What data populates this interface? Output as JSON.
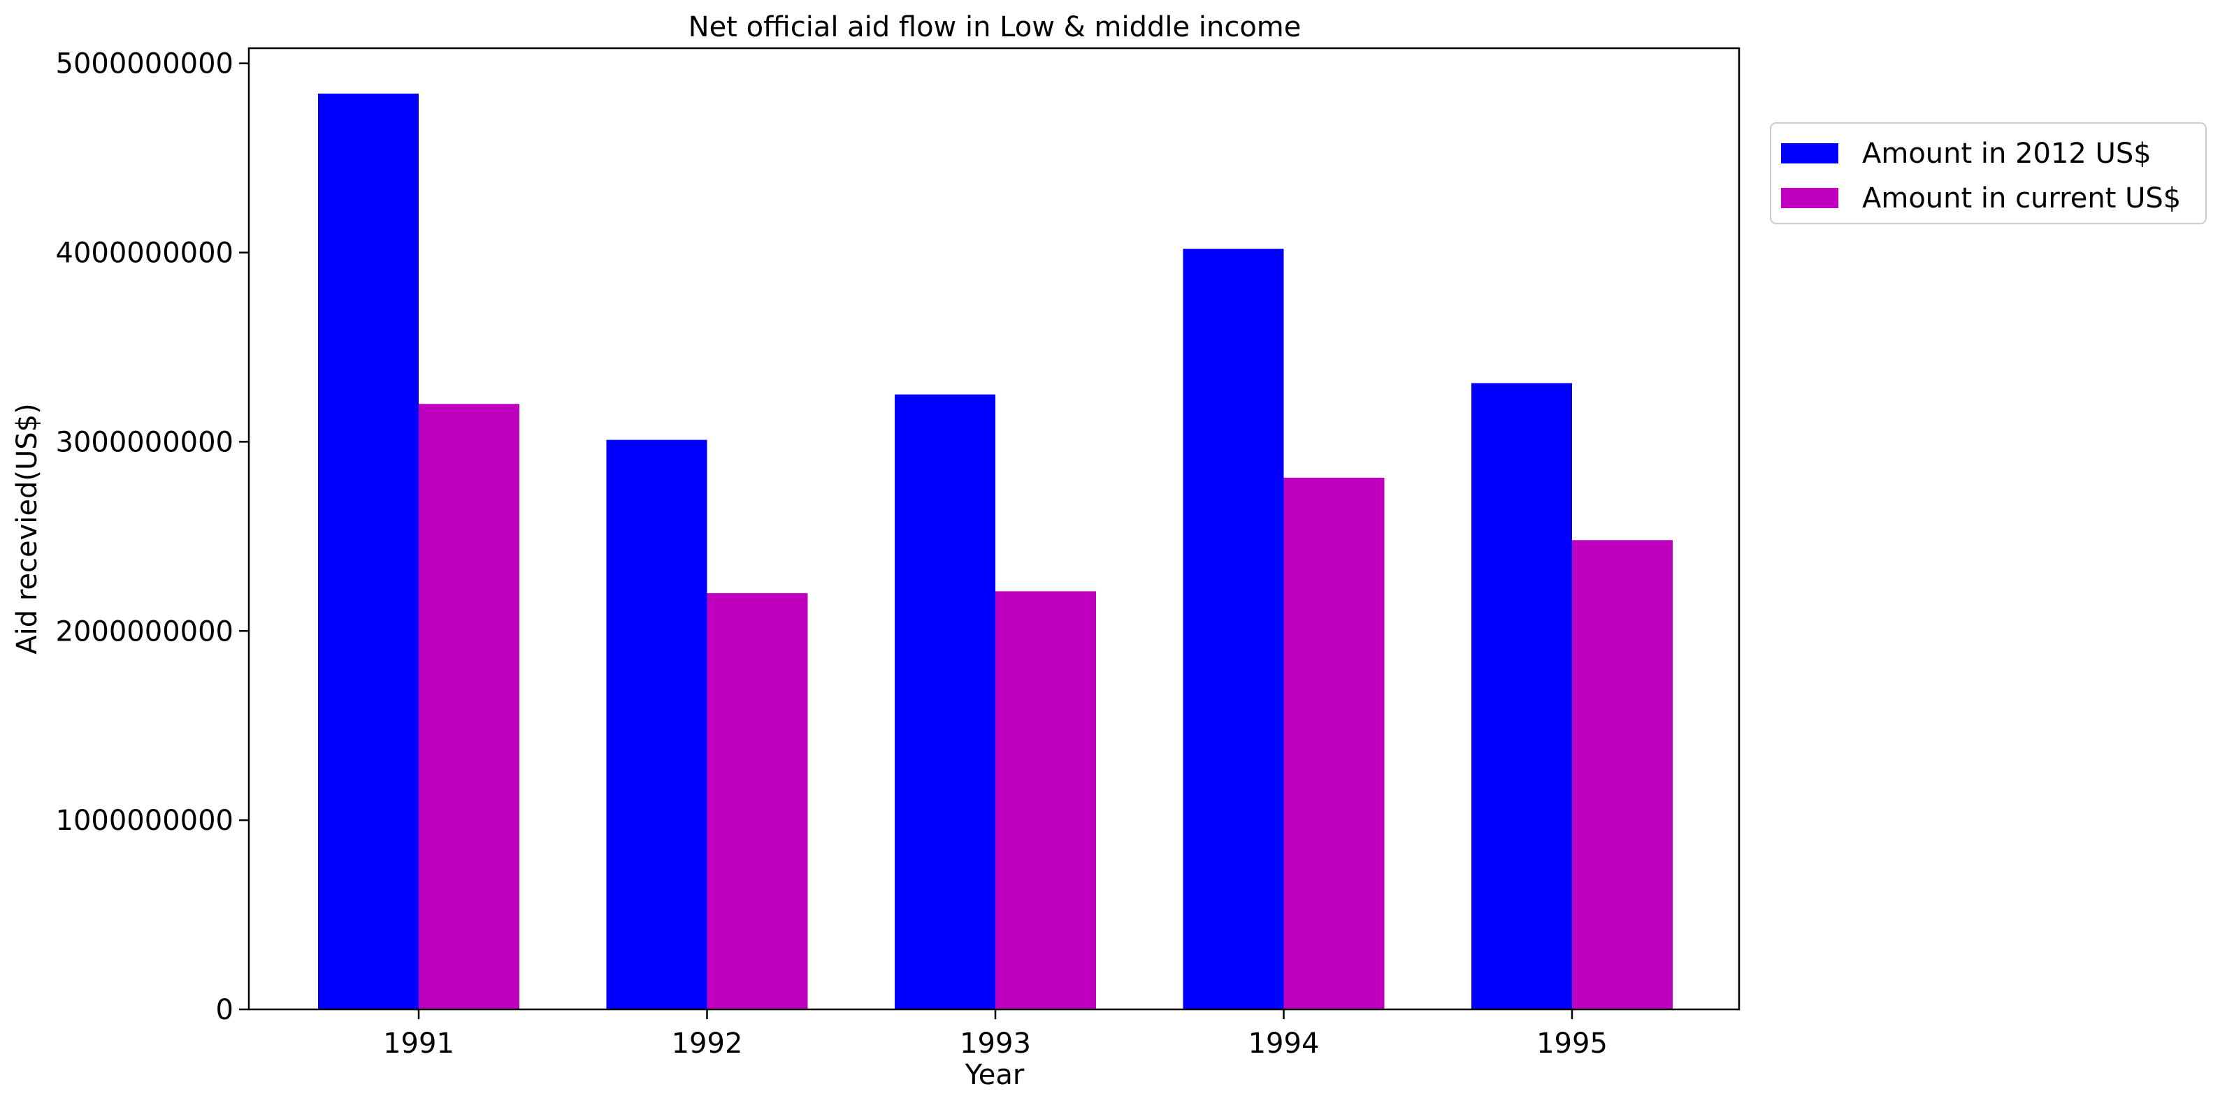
{
  "chart_data": {
    "type": "bar",
    "title": "Net official aid flow in Low & middle income",
    "xlabel": "Year",
    "ylabel": "Aid recevied(US$)",
    "categories": [
      "1991",
      "1992",
      "1993",
      "1994",
      "1995"
    ],
    "series": [
      {
        "name": "Amount in 2012 US$",
        "color": "#0000ff",
        "values": [
          4840000000,
          3010000000,
          3250000000,
          4020000000,
          3310000000
        ]
      },
      {
        "name": "Amount in current US$",
        "color": "#bf00bf",
        "values": [
          3200000000,
          2200000000,
          2210000000,
          2810000000,
          2480000000
        ]
      }
    ],
    "ylim": [
      0,
      5080000000
    ],
    "yticks": [
      0,
      1000000000,
      2000000000,
      3000000000,
      4000000000,
      5000000000
    ],
    "ytick_labels": [
      "0",
      "1000000000",
      "2000000000",
      "3000000000",
      "4000000000",
      "5000000000"
    ],
    "grid": false,
    "legend_position": "upper-right-outside"
  }
}
